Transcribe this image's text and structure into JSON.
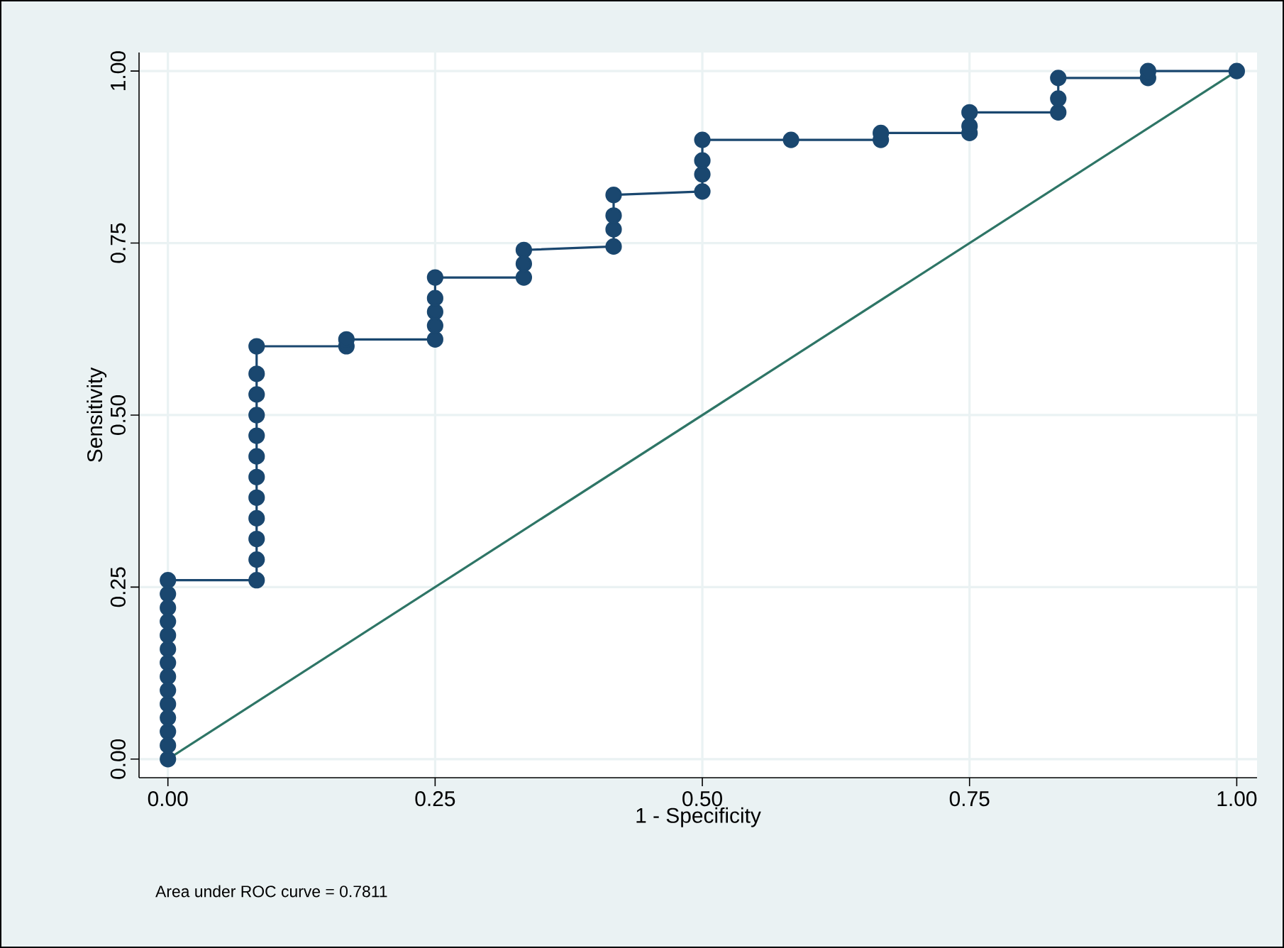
{
  "chart_data": {
    "type": "line",
    "xlabel": "1 - Specificity",
    "ylabel": "Sensitivity",
    "annotations": [
      "Area under ROC curve = 0.7811"
    ],
    "xlim": [
      -0.027,
      1.019
    ],
    "ylim": [
      -0.027,
      1.027
    ],
    "xticks": [
      {
        "value": 0,
        "label": "0.00"
      },
      {
        "value": 0.25,
        "label": "0.25"
      },
      {
        "value": 0.5,
        "label": "0.50"
      },
      {
        "value": 0.75,
        "label": "0.75"
      },
      {
        "value": 1,
        "label": "1.00"
      }
    ],
    "yticks": [
      {
        "value": 0,
        "label": "0.00"
      },
      {
        "value": 0.25,
        "label": "0.25"
      },
      {
        "value": 0.5,
        "label": "0.50"
      },
      {
        "value": 0.75,
        "label": "0.75"
      },
      {
        "value": 1,
        "label": "1.00"
      }
    ],
    "grid": true,
    "series": [
      {
        "color": "#1a476f",
        "marker": "circle",
        "x": [
          0,
          0,
          0,
          0,
          0,
          0,
          0,
          0,
          0,
          0,
          0,
          0,
          0,
          0,
          0.083,
          0.083,
          0.083,
          0.083,
          0.083,
          0.083,
          0.083,
          0.083,
          0.083,
          0.083,
          0.083,
          0.083,
          0.167,
          0.167,
          0.25,
          0.25,
          0.25,
          0.25,
          0.25,
          0.333,
          0.333,
          0.333,
          0.417,
          0.417,
          0.417,
          0.417,
          0.5,
          0.5,
          0.5,
          0.5,
          0.583,
          0.667,
          0.667,
          0.75,
          0.75,
          0.75,
          0.833,
          0.833,
          0.833,
          0.917,
          0.917,
          1
        ],
        "values": [
          0,
          0.02,
          0.04,
          0.06,
          0.08,
          0.1,
          0.12,
          0.14,
          0.16,
          0.18,
          0.2,
          0.22,
          0.24,
          0.26,
          0.26,
          0.29,
          0.32,
          0.35,
          0.38,
          0.41,
          0.44,
          0.47,
          0.5,
          0.53,
          0.56,
          0.6,
          0.6,
          0.61,
          0.61,
          0.63,
          0.65,
          0.67,
          0.7,
          0.7,
          0.72,
          0.74,
          0.745,
          0.77,
          0.79,
          0.82,
          0.825,
          0.85,
          0.87,
          0.9,
          0.9,
          0.9,
          0.91,
          0.91,
          0.92,
          0.94,
          0.94,
          0.96,
          0.99,
          0.99,
          1,
          1
        ]
      },
      {
        "color": "#2e7566",
        "marker": "none",
        "x": [
          0,
          1
        ],
        "values": [
          0,
          1
        ]
      }
    ]
  }
}
